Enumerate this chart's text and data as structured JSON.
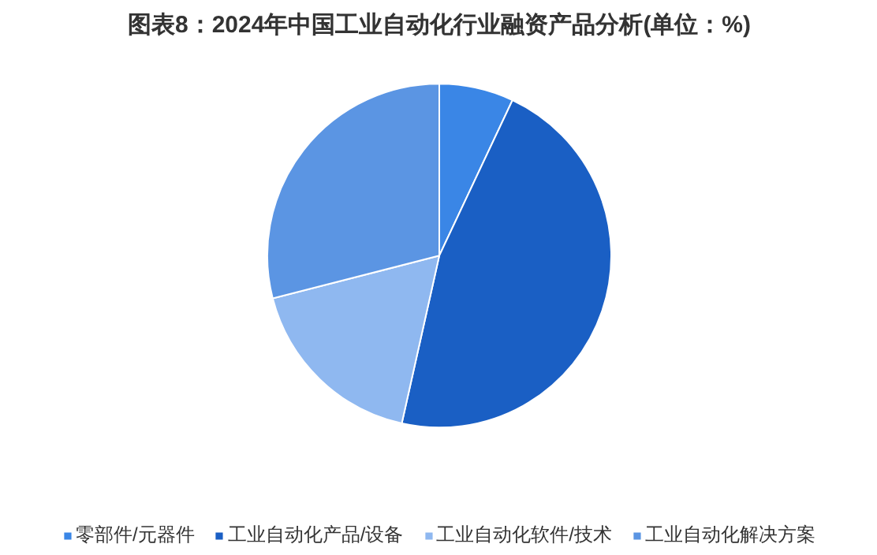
{
  "chart_data": {
    "type": "pie",
    "title": "图表8：2024年中国工业自动化行业融资产品分析(单位：%)",
    "categories": [
      "零部件/元器件",
      "工业自动化产品/设备",
      "工业自动化软件/技术",
      "工业自动化解决方案"
    ],
    "values": [
      7,
      46.5,
      17.5,
      29
    ],
    "colors": [
      "#3a86e6",
      "#1a5fc4",
      "#8fb8f0",
      "#5b95e3"
    ],
    "legend": "bottom"
  }
}
